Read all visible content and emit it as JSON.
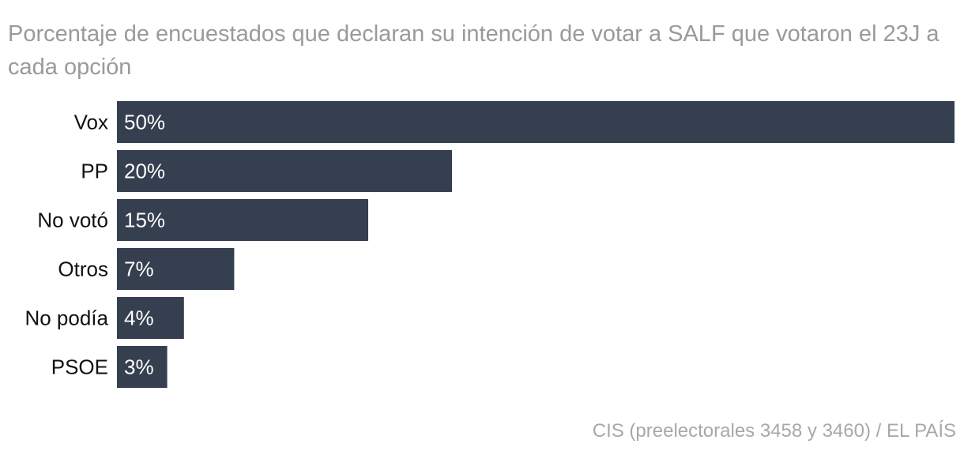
{
  "chart_data": {
    "type": "bar",
    "orientation": "horizontal",
    "title": "Porcentaje de encuestados que declaran su intención de votar a SALF que votaron el 23J a cada opción",
    "categories": [
      "Vox",
      "PP",
      "No votó",
      "Otros",
      "No podía",
      "PSOE"
    ],
    "values": [
      50,
      20,
      15,
      7,
      4,
      3
    ],
    "labels": [
      "50%",
      "20%",
      "15%",
      "7%",
      "4%",
      "3%"
    ],
    "xlim": [
      0,
      50
    ],
    "xlabel": "",
    "ylabel": "",
    "grid": false,
    "bar_color": "#353f50",
    "source": "CIS (preelectorales 3458 y 3460) / EL PAÍS"
  }
}
